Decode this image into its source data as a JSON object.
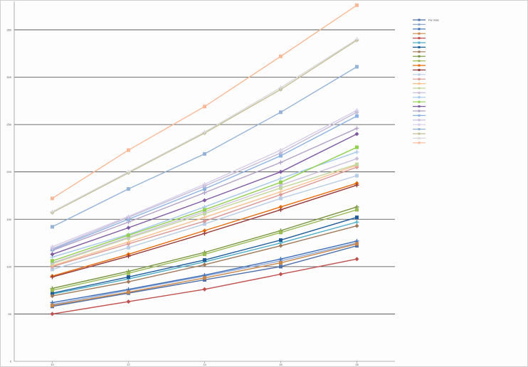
{
  "chart_data": {
    "type": "line",
    "title": "",
    "xlabel": "",
    "ylabel": "",
    "x": [
      10,
      12,
      14,
      16,
      18
    ],
    "xlim": [
      9,
      19
    ],
    "ylim": [
      0,
      380
    ],
    "yticks": [
      0,
      50,
      100,
      150,
      200,
      250,
      300,
      350
    ],
    "grid": "horizontal",
    "legend_position": "right",
    "series": [
      {
        "name": "Fw Jose",
        "values": [
          58,
          72,
          86,
          100,
          122
        ],
        "color": "#4f6fa8"
      },
      {
        "name": "",
        "values": [
          60,
          75,
          90,
          106,
          125
        ],
        "color": "#8fa9d6"
      },
      {
        "name": "",
        "values": [
          62,
          76,
          91,
          108,
          127
        ],
        "color": "#3d6db5"
      },
      {
        "name": "",
        "values": [
          59,
          73,
          88,
          104,
          124
        ],
        "color": "#c8874a"
      },
      {
        "name": "",
        "values": [
          50,
          63,
          76,
          92,
          108
        ],
        "color": "#c0504d"
      },
      {
        "name": "",
        "values": [
          71,
          87,
          105,
          125,
          147
        ],
        "color": "#4bacc6"
      },
      {
        "name": "",
        "values": [
          72,
          89,
          107,
          128,
          152
        ],
        "color": "#1f5c99"
      },
      {
        "name": "",
        "values": [
          69,
          84,
          102,
          122,
          143
        ],
        "color": "#a0785a"
      },
      {
        "name": "",
        "values": [
          77,
          95,
          115,
          138,
          163
        ],
        "color": "#77933c"
      },
      {
        "name": "",
        "values": [
          75,
          93,
          113,
          136,
          160
        ],
        "color": "#9bbb59"
      },
      {
        "name": "",
        "values": [
          90,
          113,
          138,
          163,
          188
        ],
        "color": "#e46c0a"
      },
      {
        "name": "",
        "values": [
          89,
          111,
          135,
          160,
          186
        ],
        "color": "#953735"
      },
      {
        "name": "",
        "values": [
          97,
          120,
          145,
          172,
          196
        ],
        "color": "#b9cde5"
      },
      {
        "name": "",
        "values": [
          100,
          124,
          148,
          176,
          205
        ],
        "color": "#d99694"
      },
      {
        "name": "",
        "values": [
          101,
          126,
          152,
          179,
          207
        ],
        "color": "#fac090"
      },
      {
        "name": "",
        "values": [
          103,
          130,
          156,
          183,
          208
        ],
        "color": "#c3d69b"
      },
      {
        "name": "",
        "values": [
          104,
          131,
          158,
          186,
          214
        ],
        "color": "#ccc1da"
      },
      {
        "name": "",
        "values": [
          110,
          134,
          163,
          193,
          221
        ],
        "color": "#a5c8e8"
      },
      {
        "name": "",
        "values": [
          106,
          133,
          160,
          189,
          226
        ],
        "color": "#92d050"
      },
      {
        "name": "",
        "values": [
          113,
          141,
          170,
          200,
          240
        ],
        "color": "#7f5aa2"
      },
      {
        "name": "",
        "values": [
          117,
          147,
          178,
          210,
          246
        ],
        "color": "#b3a2c7"
      },
      {
        "name": "",
        "values": [
          118,
          150,
          182,
          217,
          259
        ],
        "color": "#8db3e2"
      },
      {
        "name": "",
        "values": [
          119,
          152,
          185,
          220,
          263
        ],
        "color": "#c4bcd8"
      },
      {
        "name": "",
        "values": [
          121,
          153,
          187,
          223,
          265
        ],
        "color": "#d6cde8"
      },
      {
        "name": "",
        "values": [
          142,
          182,
          219,
          263,
          311
        ],
        "color": "#95b3d7"
      },
      {
        "name": "",
        "values": [
          157,
          199,
          241,
          287,
          339
        ],
        "color": "#c4bd97"
      },
      {
        "name": "",
        "values": [
          158,
          200,
          242,
          289,
          340
        ],
        "color": "#d9d9d9"
      },
      {
        "name": "",
        "values": [
          172,
          223,
          269,
          322,
          376
        ],
        "color": "#f9b996"
      }
    ]
  }
}
